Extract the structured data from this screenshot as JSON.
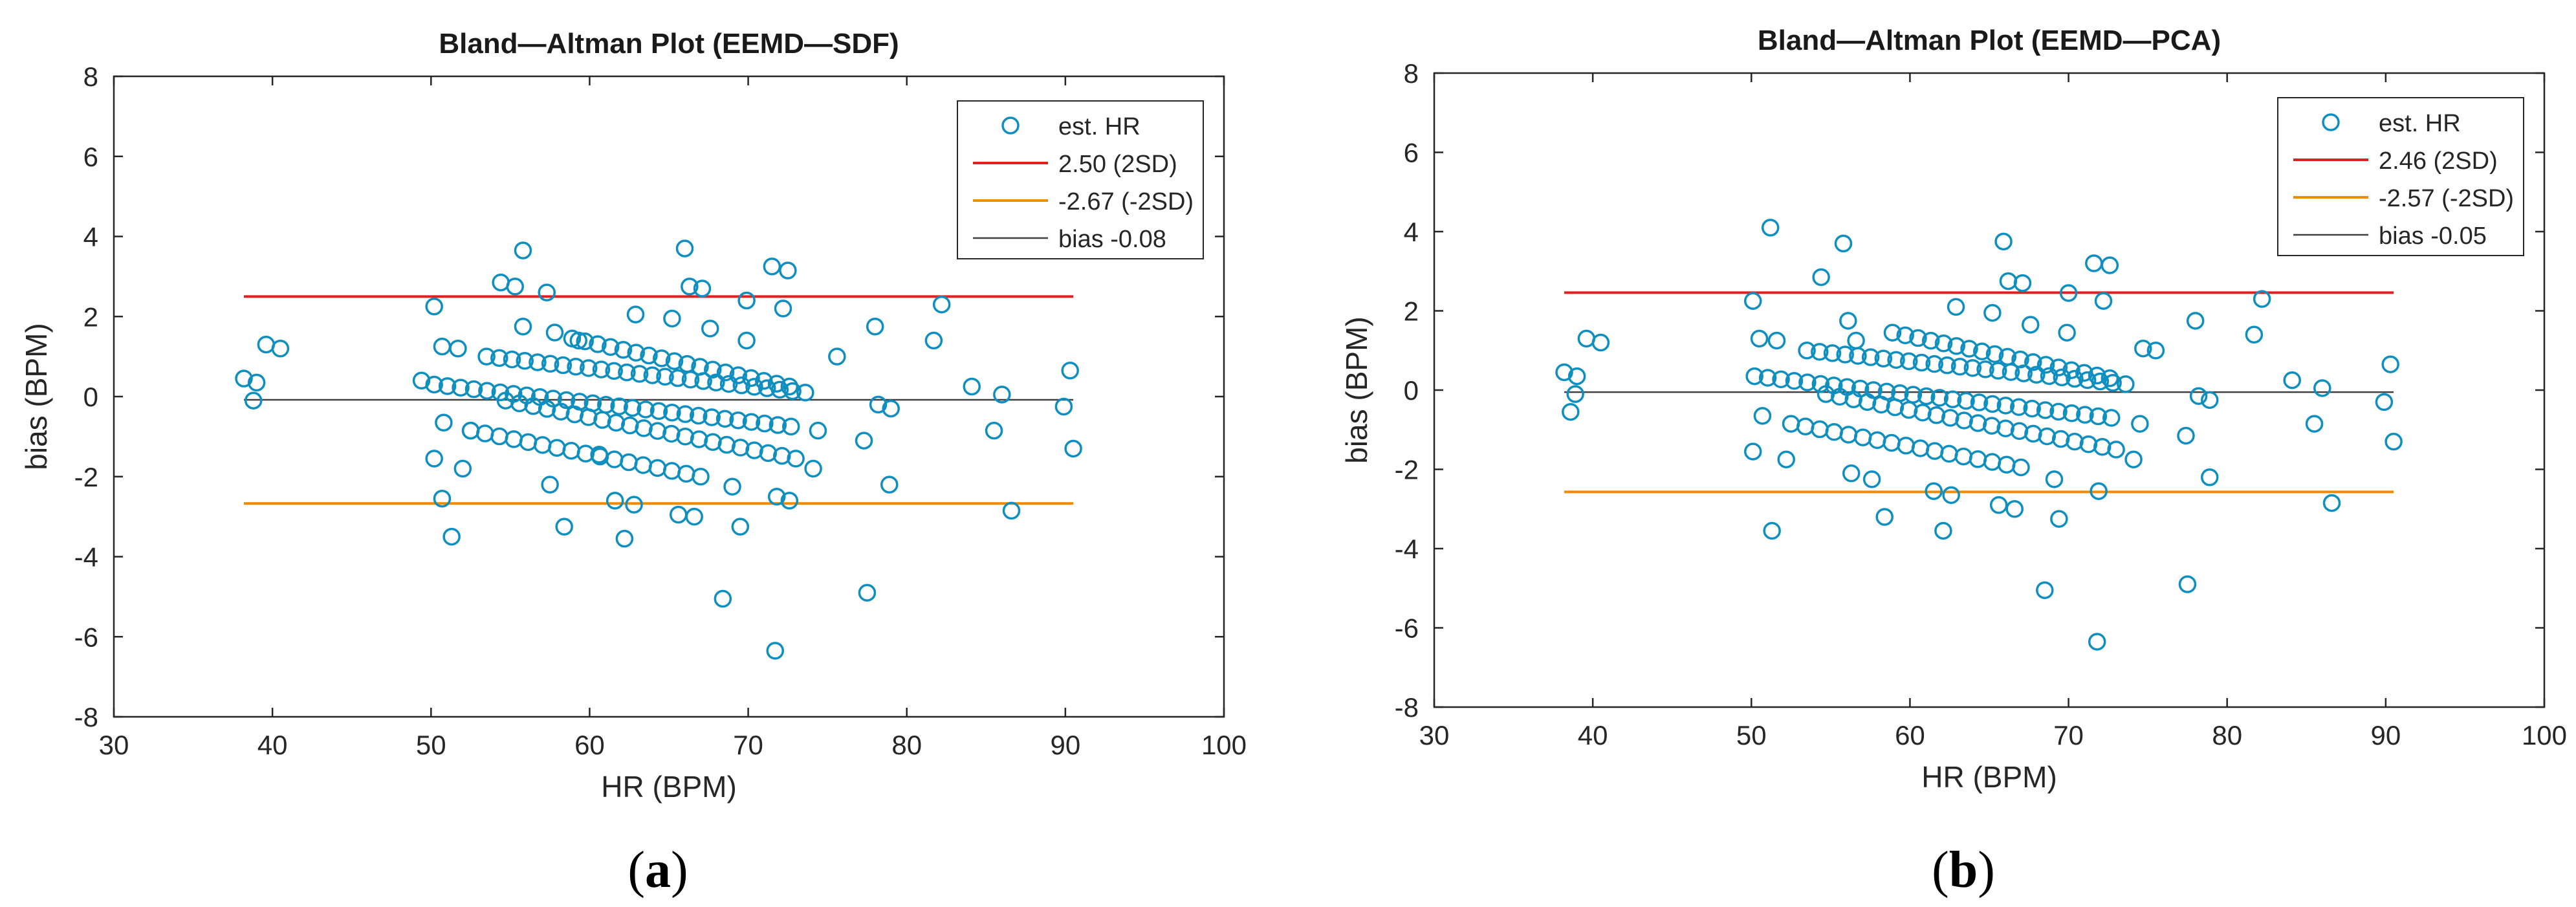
{
  "colors": {
    "marker": "#0f8fbf",
    "upper": "#e02020",
    "lower": "#f08a00",
    "bias": "#404040",
    "axis": "#262626"
  },
  "chart_data": [
    {
      "type": "scatter",
      "caption_letter": "a",
      "title": "Bland—Altman Plot (EEMD—SDF)",
      "xlabel": "HR (BPM)",
      "ylabel": "bias (BPM)",
      "xlim": [
        30,
        100
      ],
      "ylim": [
        -8,
        8
      ],
      "xticks": [
        "30",
        "40",
        "50",
        "60",
        "70",
        "80",
        "90",
        "100"
      ],
      "yticks": [
        "-8",
        "-6",
        "-4",
        "-2",
        "0",
        "2",
        "4",
        "6",
        "8"
      ],
      "legend": [
        {
          "label": "est. HR",
          "kind": "marker"
        },
        {
          "label": "2.50 (2SD)",
          "kind": "upper"
        },
        {
          "label": "-2.67 (-2SD)",
          "kind": "lower"
        },
        {
          "label": "bias -0.08",
          "kind": "bias"
        }
      ],
      "lines": {
        "upper": 2.5,
        "lower": -2.67,
        "bias": -0.08,
        "x_range": [
          38.2,
          90.5
        ]
      },
      "points": [
        [
          38.2,
          0.45
        ],
        [
          38.8,
          -0.1
        ],
        [
          39,
          0.35
        ],
        [
          39.6,
          1.3
        ],
        [
          40.5,
          1.2
        ],
        [
          49.4,
          0.4
        ],
        [
          50.2,
          2.25
        ],
        [
          50.2,
          -1.55
        ],
        [
          50.7,
          1.25
        ],
        [
          50.8,
          -0.65
        ],
        [
          50.7,
          -2.55
        ],
        [
          51.3,
          -3.5
        ],
        [
          51.7,
          1.2
        ],
        [
          52,
          -1.8
        ],
        [
          52.5,
          -0.85
        ],
        [
          54.4,
          2.85
        ],
        [
          55.3,
          2.75
        ],
        [
          55.8,
          3.65
        ],
        [
          55.8,
          1.75
        ],
        [
          57.3,
          2.6
        ],
        [
          57.8,
          1.6
        ],
        [
          57.5,
          -2.2
        ],
        [
          58.4,
          -3.25
        ],
        [
          59.3,
          1.4
        ],
        [
          60.6,
          -1.45
        ],
        [
          61.6,
          -2.6
        ],
        [
          62.2,
          -3.55
        ],
        [
          62.8,
          -2.7
        ],
        [
          62.9,
          2.05
        ],
        [
          65.2,
          1.95
        ],
        [
          65.6,
          -2.95
        ],
        [
          66,
          3.7
        ],
        [
          66.3,
          2.75
        ],
        [
          66.6,
          -3
        ],
        [
          67.1,
          2.7
        ],
        [
          67.6,
          1.7
        ],
        [
          68.4,
          -5.05
        ],
        [
          69,
          -2.25
        ],
        [
          69.5,
          -3.25
        ],
        [
          69.9,
          1.4
        ],
        [
          69.9,
          2.4
        ],
        [
          71.5,
          3.25
        ],
        [
          71.7,
          -6.35
        ],
        [
          71.8,
          -2.5
        ],
        [
          72.2,
          2.2
        ],
        [
          72.5,
          3.15
        ],
        [
          72.6,
          -2.6
        ],
        [
          74.1,
          -1.8
        ],
        [
          74.4,
          -0.85
        ],
        [
          75.6,
          1
        ],
        [
          77.3,
          -1.1
        ],
        [
          77.5,
          -4.9
        ],
        [
          78,
          1.75
        ],
        [
          78.2,
          -0.2
        ],
        [
          79,
          -0.3
        ],
        [
          78.9,
          -2.2
        ],
        [
          81.7,
          1.4
        ],
        [
          82.2,
          2.3
        ],
        [
          84.1,
          0.25
        ],
        [
          85.5,
          -0.85
        ],
        [
          86,
          0.05
        ],
        [
          86.6,
          -2.85
        ],
        [
          89.9,
          -0.25
        ],
        [
          90.3,
          0.65
        ],
        [
          90.5,
          -1.3
        ]
      ],
      "bands": [
        {
          "x0": 53.5,
          "y0": 1.0,
          "x1": 73.6,
          "y1": 0.1,
          "n": 26
        },
        {
          "x0": 50.2,
          "y0": 0.3,
          "x1": 72.7,
          "y1": -0.75,
          "n": 28
        },
        {
          "x0": 54.7,
          "y0": -0.1,
          "x1": 73.0,
          "y1": -1.55,
          "n": 22
        },
        {
          "x0": 52.5,
          "y0": -0.85,
          "x1": 67.0,
          "y1": -2.0,
          "n": 17
        },
        {
          "x0": 58.9,
          "y0": 1.45,
          "x1": 72.6,
          "y1": 0.25,
          "n": 18
        }
      ]
    },
    {
      "type": "scatter",
      "caption_letter": "b",
      "title": "Bland—Altman Plot (EEMD—PCA)",
      "xlabel": "HR (BPM)",
      "ylabel": "bias (BPM)",
      "xlim": [
        30,
        100
      ],
      "ylim": [
        -8,
        8
      ],
      "xticks": [
        "30",
        "40",
        "50",
        "60",
        "70",
        "80",
        "90",
        "100"
      ],
      "yticks": [
        "-8",
        "-6",
        "-4",
        "-2",
        "0",
        "2",
        "4",
        "6",
        "8"
      ],
      "legend": [
        {
          "label": "est. HR",
          "kind": "marker"
        },
        {
          "label": "2.46 (2SD)",
          "kind": "upper"
        },
        {
          "label": "-2.57 (-2SD)",
          "kind": "lower"
        },
        {
          "label": "bias -0.05",
          "kind": "bias"
        }
      ],
      "lines": {
        "upper": 2.46,
        "lower": -2.57,
        "bias": -0.05,
        "x_range": [
          38.2,
          90.5
        ]
      },
      "points": [
        [
          38.2,
          0.45
        ],
        [
          38.6,
          -0.55
        ],
        [
          38.9,
          -0.1
        ],
        [
          39,
          0.35
        ],
        [
          39.6,
          1.3
        ],
        [
          40.5,
          1.2
        ],
        [
          50.1,
          2.25
        ],
        [
          50.1,
          -1.55
        ],
        [
          50.5,
          1.3
        ],
        [
          50.7,
          -0.65
        ],
        [
          51.2,
          4.1
        ],
        [
          51.3,
          -3.55
        ],
        [
          51.6,
          1.25
        ],
        [
          52.2,
          -1.75
        ],
        [
          54.4,
          2.85
        ],
        [
          55.8,
          3.7
        ],
        [
          56.1,
          1.75
        ],
        [
          56.6,
          1.25
        ],
        [
          56.3,
          -2.1
        ],
        [
          57.6,
          -2.25
        ],
        [
          58.4,
          -3.2
        ],
        [
          61.5,
          -2.55
        ],
        [
          62.1,
          -3.55
        ],
        [
          62.6,
          -2.65
        ],
        [
          62.9,
          2.1
        ],
        [
          65.2,
          1.95
        ],
        [
          65.6,
          -2.9
        ],
        [
          65.9,
          3.75
        ],
        [
          66.2,
          2.75
        ],
        [
          66.6,
          -3
        ],
        [
          67.1,
          2.7
        ],
        [
          67.6,
          1.65
        ],
        [
          68.5,
          -5.05
        ],
        [
          69.1,
          -2.25
        ],
        [
          69.4,
          -3.25
        ],
        [
          69.9,
          1.45
        ],
        [
          70,
          2.45
        ],
        [
          71.6,
          3.2
        ],
        [
          71.8,
          -6.35
        ],
        [
          71.9,
          -2.55
        ],
        [
          72.2,
          2.25
        ],
        [
          72.6,
          3.15
        ],
        [
          74.1,
          -1.75
        ],
        [
          74.5,
          -0.85
        ],
        [
          74.7,
          1.05
        ],
        [
          75.5,
          1
        ],
        [
          77.4,
          -1.15
        ],
        [
          77.5,
          -4.9
        ],
        [
          78,
          1.75
        ],
        [
          78.2,
          -0.15
        ],
        [
          78.9,
          -0.25
        ],
        [
          78.9,
          -2.2
        ],
        [
          81.7,
          1.4
        ],
        [
          82.2,
          2.3
        ],
        [
          84.1,
          0.25
        ],
        [
          85.5,
          -0.85
        ],
        [
          86,
          0.05
        ],
        [
          86.6,
          -2.85
        ],
        [
          89.9,
          -0.3
        ],
        [
          90.3,
          0.65
        ],
        [
          90.5,
          -1.3
        ]
      ],
      "bands": [
        {
          "x0": 53.5,
          "y0": 1.0,
          "x1": 73.6,
          "y1": 0.15,
          "n": 26
        },
        {
          "x0": 50.2,
          "y0": 0.35,
          "x1": 72.7,
          "y1": -0.7,
          "n": 28
        },
        {
          "x0": 54.7,
          "y0": -0.1,
          "x1": 73.0,
          "y1": -1.5,
          "n": 22
        },
        {
          "x0": 52.5,
          "y0": -0.85,
          "x1": 67.0,
          "y1": -1.95,
          "n": 17
        },
        {
          "x0": 58.9,
          "y0": 1.45,
          "x1": 72.6,
          "y1": 0.3,
          "n": 18
        }
      ]
    }
  ]
}
